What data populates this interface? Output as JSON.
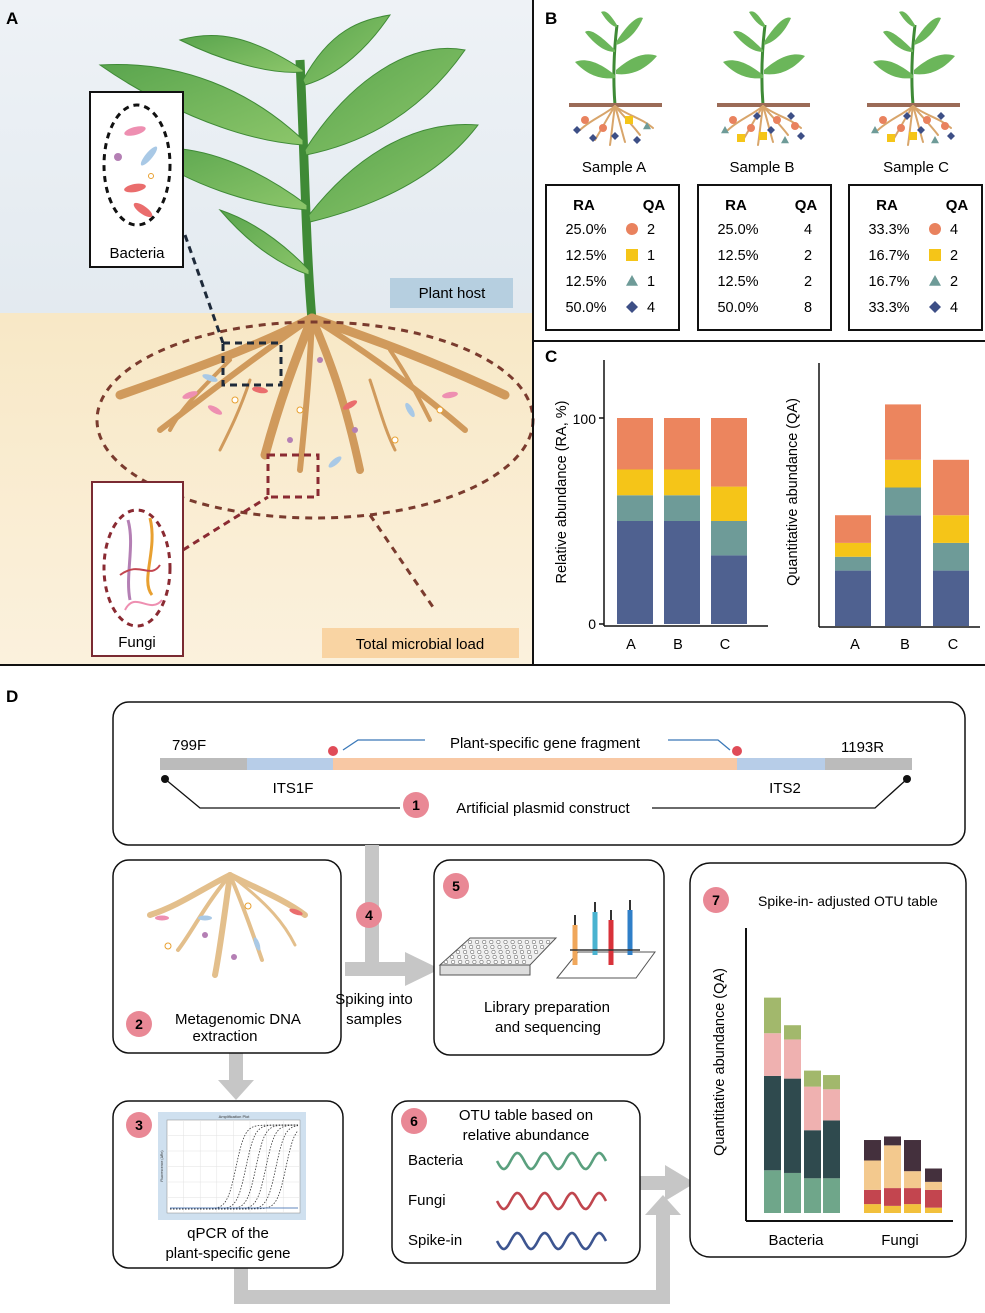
{
  "panel_labels": {
    "a": "A",
    "b": "B",
    "c": "C",
    "d": "D"
  },
  "panel_a": {
    "bacteria_label": "Bacteria",
    "fungi_label": "Fungi",
    "plant_host_label": "Plant host",
    "total_load_label": "Total microbial load"
  },
  "panel_b": {
    "col_ra": "RA",
    "col_qa": "QA",
    "marker_colors": {
      "circle": "#e9825e",
      "square": "#f5c518",
      "triangle": "#6e9b98",
      "diamond": "#3d4f86"
    },
    "samples": [
      {
        "name": "Sample A",
        "rows": [
          {
            "ra": "25.0%",
            "marker": "circle",
            "qa": "2"
          },
          {
            "ra": "12.5%",
            "marker": "square",
            "qa": "1"
          },
          {
            "ra": "12.5%",
            "marker": "triangle",
            "qa": "1"
          },
          {
            "ra": "50.0%",
            "marker": "diamond",
            "qa": "4"
          }
        ]
      },
      {
        "name": "Sample B",
        "rows": [
          {
            "ra": "25.0%",
            "marker": "",
            "qa": "4"
          },
          {
            "ra": "12.5%",
            "marker": "",
            "qa": "2"
          },
          {
            "ra": "12.5%",
            "marker": "",
            "qa": "2"
          },
          {
            "ra": "50.0%",
            "marker": "",
            "qa": "8"
          }
        ]
      },
      {
        "name": "Sample C",
        "rows": [
          {
            "ra": "33.3%",
            "marker": "circle",
            "qa": "4"
          },
          {
            "ra": "16.7%",
            "marker": "square",
            "qa": "2"
          },
          {
            "ra": "16.7%",
            "marker": "triangle",
            "qa": "2"
          },
          {
            "ra": "33.3%",
            "marker": "diamond",
            "qa": "4"
          }
        ]
      }
    ]
  },
  "chart_data": [
    {
      "type": "bar",
      "stacked": true,
      "categories": [
        "A",
        "B",
        "C"
      ],
      "ylabel": "Relative abundance (RA, %)",
      "ylim": [
        0,
        100
      ],
      "yticks": [
        "0",
        "100"
      ],
      "series": [
        {
          "values": [
            50.0,
            50.0,
            33.3
          ],
          "color": "#4f6190"
        },
        {
          "values": [
            12.5,
            12.5,
            16.7
          ],
          "color": "#6e9b98"
        },
        {
          "values": [
            12.5,
            12.5,
            16.7
          ],
          "color": "#f5c518"
        },
        {
          "values": [
            25.0,
            25.0,
            33.3
          ],
          "color": "#ec855e"
        }
      ]
    },
    {
      "type": "bar",
      "stacked": true,
      "categories": [
        "A",
        "B",
        "C"
      ],
      "ylabel": "Quantitative abundance (QA)",
      "ylim": [
        0,
        9
      ],
      "series": [
        {
          "values": [
            2,
            4,
            2
          ],
          "color": "#4f6190"
        },
        {
          "values": [
            0.5,
            1,
            1
          ],
          "color": "#6e9b98"
        },
        {
          "values": [
            0.5,
            1,
            1
          ],
          "color": "#f5c518"
        },
        {
          "values": [
            1,
            2,
            2
          ],
          "color": "#ec855e"
        }
      ]
    },
    {
      "type": "bar",
      "stacked": true,
      "title": "Spike-in- adjusted OTU table",
      "ylabel": "Quantitative abundance (QA)",
      "groups": [
        "Bacteria",
        "Fungi"
      ],
      "categories": [
        "1",
        "2",
        "3",
        "4",
        "5",
        "6",
        "7",
        "8"
      ],
      "group_of": [
        0,
        0,
        0,
        0,
        1,
        1,
        1,
        1
      ],
      "series": [
        {
          "values": [
            4.8,
            4.5,
            3.9,
            3.9,
            1.0,
            0.8,
            1.0,
            0.6
          ],
          "color": "#6fa68a"
        },
        {
          "values": [
            10.6,
            10.6,
            5.4,
            6.5,
            1.6,
            2.0,
            1.8,
            2.0
          ],
          "color": "#2f4a4e"
        },
        {
          "values": [
            4.8,
            4.4,
            4.9,
            3.5,
            3.3,
            4.8,
            1.9,
            0.9
          ],
          "color": "#efb1b0"
        },
        {
          "values": [
            4.0,
            1.6,
            1.8,
            1.6,
            2.3,
            1.0,
            3.5,
            1.5
          ],
          "color": "#a2b86c"
        }
      ],
      "segment_colors_fungi": [
        "#f2c03c",
        "#c3454f",
        "#f3c98e",
        "#44303d"
      ]
    }
  ],
  "panel_d": {
    "primer_left": "799F",
    "primer_right": "1193R",
    "fragment_label": "Plant-specific gene fragment",
    "its_left": "ITS1F",
    "its_right": "ITS2",
    "steps": [
      {
        "number": "1",
        "label": "Artificial plasmid construct"
      },
      {
        "number": "2",
        "label_lines": [
          "Metagenomic DNA",
          "extraction"
        ]
      },
      {
        "number": "3",
        "label_lines": [
          "qPCR of the",
          "plant-specific gene"
        ]
      },
      {
        "number": "4",
        "label_lines": [
          "Spiking into",
          "samples"
        ]
      },
      {
        "number": "5",
        "label_lines": [
          "Library preparation",
          "and sequencing"
        ]
      },
      {
        "number": "6",
        "label_lines": [
          "OTU table based on",
          "relative abundance"
        ]
      },
      {
        "number": "7",
        "label": "Spike-in- adjusted OTU table"
      }
    ],
    "otu_rows": [
      {
        "label": "Bacteria",
        "color": "#5aa07e"
      },
      {
        "label": "Fungi",
        "color": "#c0464e"
      },
      {
        "label": "Spike-in",
        "color": "#3d5590"
      }
    ],
    "qpcr_title": "Amplification Plot",
    "qpcr_ylabel": "Fluorescence (ΔRn)"
  }
}
